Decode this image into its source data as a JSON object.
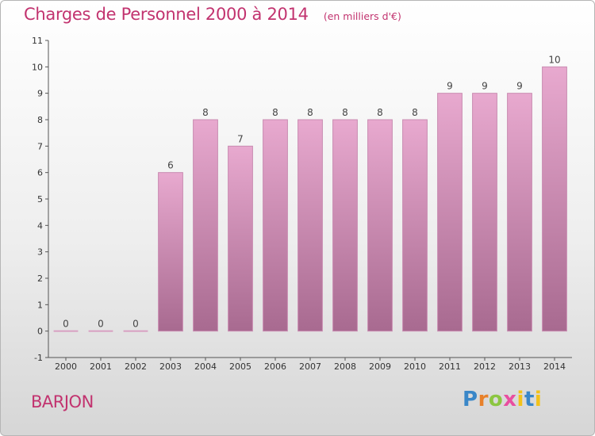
{
  "title": "Charges de Personnel 2000 à 2014",
  "subtitle": "(en milliers d'€)",
  "commune": "BARJON",
  "logo": {
    "letters": [
      "P",
      "r",
      "o",
      "x",
      "i",
      "t",
      "i"
    ]
  },
  "colors": {
    "accent": "#c2336f",
    "bar_top": "#e8a9cf",
    "bar_bottom": "#a86a90",
    "bar_stroke": "#c98bb1",
    "zero_bar": "#d8a0c2"
  },
  "chart_data": {
    "type": "bar",
    "categories": [
      "2000",
      "2001",
      "2002",
      "2003",
      "2004",
      "2005",
      "2006",
      "2007",
      "2008",
      "2009",
      "2010",
      "2011",
      "2012",
      "2013",
      "2014"
    ],
    "values": [
      0,
      0,
      0,
      6,
      8,
      7,
      8,
      8,
      8,
      8,
      8,
      9,
      9,
      9,
      10
    ],
    "data_labels": [
      "0",
      "0",
      "0",
      "6",
      "8",
      "7",
      "8",
      "8",
      "8",
      "8",
      "8",
      "9",
      "9",
      "9",
      "10"
    ],
    "y_ticks": [
      -1,
      0,
      1,
      2,
      3,
      4,
      5,
      6,
      7,
      8,
      9,
      10,
      11
    ],
    "y_tick_labels": [
      "-1",
      "0",
      "1",
      "2",
      "3",
      "4",
      "5",
      "6",
      "7",
      "8",
      "9",
      "10",
      "11"
    ],
    "ylim": [
      -1,
      11
    ],
    "grid": false
  }
}
